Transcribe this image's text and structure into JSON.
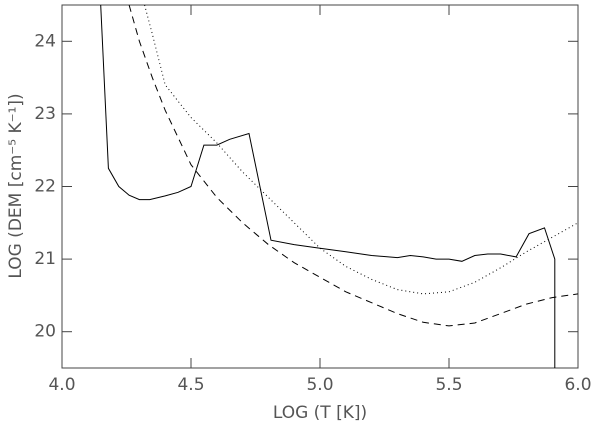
{
  "chart_data": {
    "type": "line",
    "xlabel": "LOG (T [K])",
    "ylabel": "LOG (DEM [cm⁻⁵ K⁻¹])",
    "xlim": [
      4.0,
      6.0
    ],
    "ylim": [
      19.5,
      24.5
    ],
    "xticks": [
      {
        "value": 4,
        "label": "4.0"
      },
      4.5,
      {
        "value": 5,
        "label": "5.0"
      },
      5.5,
      {
        "value": 6,
        "label": "6.0"
      }
    ],
    "yticks": [
      20,
      21,
      22,
      23,
      24
    ],
    "grid": false,
    "series": [
      {
        "color": "#000000",
        "style": "solid",
        "x": [
          4.15,
          4.18,
          4.22,
          4.26,
          4.3,
          4.34,
          4.4,
          4.45,
          4.5,
          4.55,
          4.6,
          4.65,
          4.725,
          4.81,
          4.9,
          5.0,
          5.1,
          5.2,
          5.3,
          5.35,
          5.4,
          5.45,
          5.5,
          5.55,
          5.6,
          5.65,
          5.7,
          5.76,
          5.81,
          5.87,
          5.91,
          5.91
        ],
        "values": [
          24.5,
          22.25,
          22.0,
          21.88,
          21.82,
          21.82,
          21.87,
          21.92,
          22.0,
          22.57,
          22.57,
          22.65,
          22.73,
          21.26,
          21.2,
          21.15,
          21.1,
          21.05,
          21.02,
          21.05,
          21.03,
          21.0,
          21.0,
          20.97,
          21.05,
          21.07,
          21.07,
          21.03,
          21.35,
          21.43,
          21.0,
          19.5
        ]
      },
      {
        "color": "#000000",
        "style": "dashed",
        "x": [
          4.26,
          4.3,
          4.35,
          4.4,
          4.5,
          4.6,
          4.7,
          4.8,
          4.9,
          5.0,
          5.1,
          5.2,
          5.3,
          5.4,
          5.5,
          5.6,
          5.7,
          5.8,
          5.9,
          6.0
        ],
        "values": [
          24.5,
          24.0,
          23.5,
          23.05,
          22.3,
          21.85,
          21.5,
          21.2,
          20.95,
          20.75,
          20.55,
          20.4,
          20.25,
          20.13,
          20.08,
          20.12,
          20.25,
          20.38,
          20.47,
          20.52
        ]
      },
      {
        "color": "#000000",
        "style": "dotted",
        "x": [
          4.32,
          4.35,
          4.4,
          4.5,
          4.6,
          4.7,
          4.8,
          4.9,
          5.0,
          5.1,
          5.2,
          5.3,
          5.4,
          5.5,
          5.6,
          5.7,
          5.8,
          5.9,
          6.0
        ],
        "values": [
          24.5,
          24.1,
          23.4,
          22.95,
          22.6,
          22.2,
          21.85,
          21.5,
          21.15,
          20.9,
          20.72,
          20.58,
          20.52,
          20.55,
          20.68,
          20.88,
          21.1,
          21.3,
          21.5
        ]
      }
    ]
  }
}
